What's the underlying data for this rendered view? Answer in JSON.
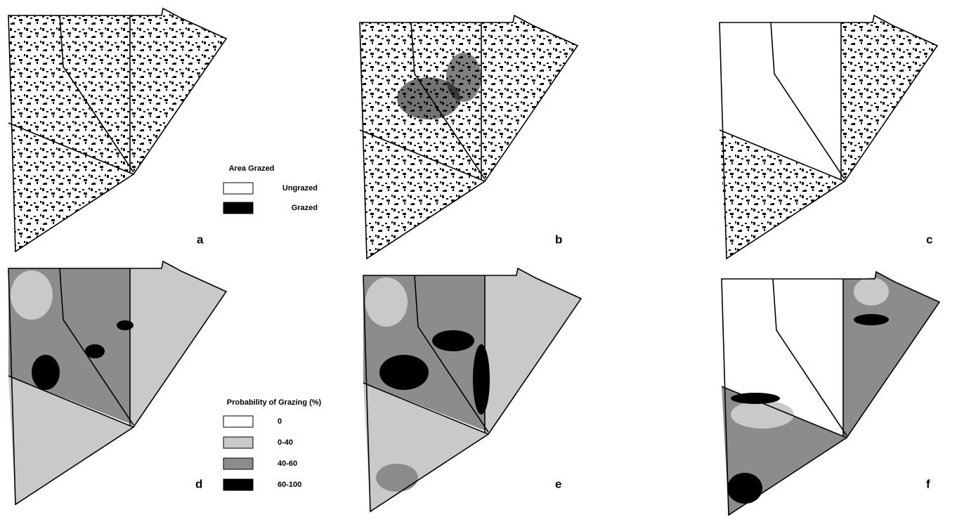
{
  "legend_grazed": {
    "title": "Area Grazed",
    "items": [
      "Ungrazed",
      "Grazed"
    ]
  },
  "legend_probability": {
    "title": "Probability of Grazing (%)",
    "items": [
      "0",
      "0-40",
      "40-60",
      "60-100"
    ]
  },
  "panels": [
    "a",
    "b",
    "c",
    "d",
    "e",
    "f"
  ]
}
